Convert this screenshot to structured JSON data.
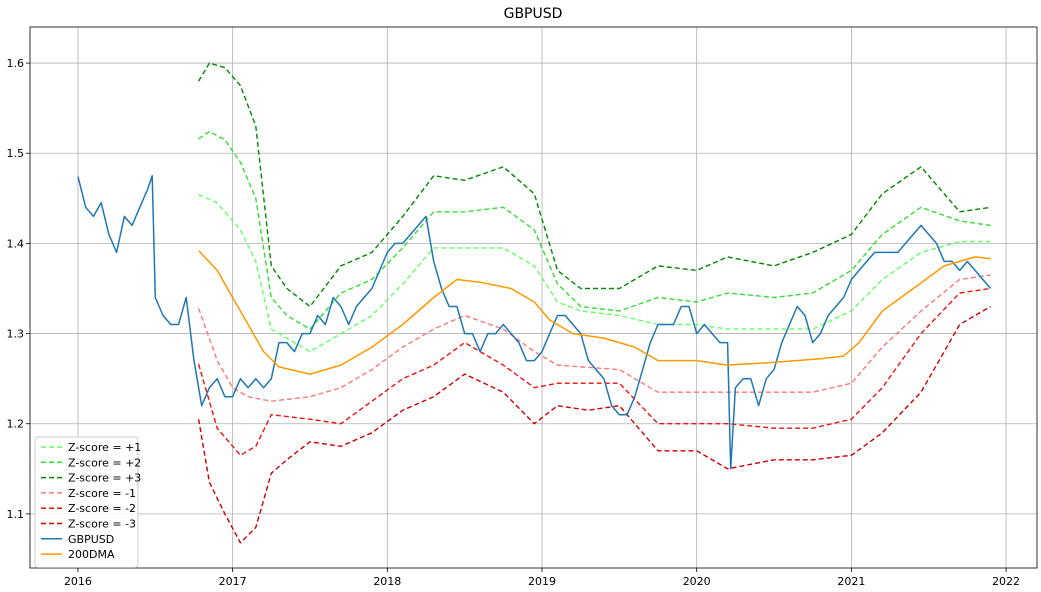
{
  "chart_data": {
    "type": "line",
    "title": "GBPUSD",
    "xlabel": "",
    "ylabel": "",
    "xlim": [
      2015.69,
      2022.2
    ],
    "ylim": [
      1.04,
      1.64
    ],
    "x_ticks": [
      2016,
      2017,
      2018,
      2019,
      2020,
      2021,
      2022
    ],
    "x_tick_labels": [
      "2016",
      "2017",
      "2018",
      "2019",
      "2020",
      "2021",
      "2022"
    ],
    "y_ticks": [
      1.1,
      1.2,
      1.3,
      1.4,
      1.5,
      1.6
    ],
    "y_tick_labels": [
      "1.1",
      "1.2",
      "1.3",
      "1.4",
      "1.5",
      "1.6"
    ],
    "grid": true,
    "legend_position": "lower-left",
    "series": [
      {
        "name": "Z-score = +1",
        "color": "#66ff66",
        "dash": "dashed",
        "x": [
          2016.78,
          2016.9,
          2017.05,
          2017.15,
          2017.25,
          2017.35,
          2017.5,
          2017.7,
          2017.9,
          2018.1,
          2018.3,
          2018.5,
          2018.75,
          2018.95,
          2019.1,
          2019.25,
          2019.5,
          2019.75,
          2020.0,
          2020.2,
          2020.5,
          2020.75,
          2021.0,
          2021.2,
          2021.45,
          2021.7,
          2021.9
        ],
        "y": [
          1.454,
          1.445,
          1.415,
          1.38,
          1.305,
          1.295,
          1.28,
          1.3,
          1.32,
          1.355,
          1.395,
          1.395,
          1.395,
          1.375,
          1.335,
          1.325,
          1.32,
          1.31,
          1.31,
          1.305,
          1.305,
          1.305,
          1.325,
          1.36,
          1.39,
          1.402,
          1.402
        ]
      },
      {
        "name": "Z-score = +2",
        "color": "#33dd33",
        "dash": "dashed",
        "x": [
          2016.78,
          2016.85,
          2016.95,
          2017.05,
          2017.15,
          2017.25,
          2017.35,
          2017.5,
          2017.7,
          2017.9,
          2018.1,
          2018.3,
          2018.5,
          2018.75,
          2018.95,
          2019.1,
          2019.25,
          2019.5,
          2019.75,
          2020.0,
          2020.2,
          2020.5,
          2020.75,
          2021.0,
          2021.2,
          2021.45,
          2021.7,
          2021.9
        ],
        "y": [
          1.516,
          1.524,
          1.515,
          1.49,
          1.45,
          1.34,
          1.32,
          1.305,
          1.345,
          1.36,
          1.395,
          1.435,
          1.435,
          1.44,
          1.415,
          1.355,
          1.33,
          1.325,
          1.34,
          1.335,
          1.345,
          1.34,
          1.345,
          1.37,
          1.41,
          1.44,
          1.425,
          1.42
        ]
      },
      {
        "name": "Z-score = +3",
        "color": "#008800",
        "dash": "dashed",
        "x": [
          2016.78,
          2016.85,
          2016.95,
          2017.05,
          2017.15,
          2017.25,
          2017.35,
          2017.5,
          2017.7,
          2017.9,
          2018.1,
          2018.3,
          2018.5,
          2018.75,
          2018.95,
          2019.1,
          2019.25,
          2019.5,
          2019.75,
          2020.0,
          2020.2,
          2020.5,
          2020.75,
          2021.0,
          2021.2,
          2021.45,
          2021.7,
          2021.9
        ],
        "y": [
          1.58,
          1.6,
          1.595,
          1.575,
          1.53,
          1.375,
          1.35,
          1.33,
          1.375,
          1.39,
          1.43,
          1.475,
          1.47,
          1.485,
          1.455,
          1.37,
          1.35,
          1.35,
          1.375,
          1.37,
          1.385,
          1.375,
          1.39,
          1.41,
          1.455,
          1.485,
          1.435,
          1.44
        ]
      },
      {
        "name": "Z-score = -1",
        "color": "#ff7777",
        "dash": "dashed",
        "x": [
          2016.78,
          2016.9,
          2017.0,
          2017.1,
          2017.25,
          2017.5,
          2017.7,
          2017.9,
          2018.1,
          2018.3,
          2018.5,
          2018.75,
          2018.95,
          2019.1,
          2019.5,
          2019.75,
          2020.0,
          2020.2,
          2020.5,
          2020.75,
          2021.0,
          2021.2,
          2021.45,
          2021.7,
          2021.9
        ],
        "y": [
          1.328,
          1.27,
          1.24,
          1.23,
          1.225,
          1.23,
          1.24,
          1.26,
          1.285,
          1.305,
          1.32,
          1.305,
          1.28,
          1.265,
          1.26,
          1.235,
          1.235,
          1.235,
          1.235,
          1.235,
          1.245,
          1.285,
          1.325,
          1.36,
          1.365
        ]
      },
      {
        "name": "Z-score = -2",
        "color": "#ee1111",
        "dash": "dashed",
        "x": [
          2016.78,
          2016.9,
          2017.05,
          2017.15,
          2017.25,
          2017.5,
          2017.7,
          2017.9,
          2018.1,
          2018.3,
          2018.5,
          2018.75,
          2018.95,
          2019.1,
          2019.5,
          2019.75,
          2020.0,
          2020.2,
          2020.5,
          2020.75,
          2021.0,
          2021.2,
          2021.45,
          2021.7,
          2021.9
        ],
        "y": [
          1.266,
          1.195,
          1.165,
          1.175,
          1.21,
          1.205,
          1.2,
          1.225,
          1.25,
          1.265,
          1.29,
          1.265,
          1.24,
          1.245,
          1.245,
          1.2,
          1.2,
          1.2,
          1.195,
          1.195,
          1.205,
          1.24,
          1.3,
          1.345,
          1.35
        ]
      },
      {
        "name": "Z-score = -3",
        "color": "#cc0000",
        "dash": "dashed",
        "x": [
          2016.78,
          2016.85,
          2016.95,
          2017.05,
          2017.15,
          2017.25,
          2017.35,
          2017.5,
          2017.7,
          2017.9,
          2018.1,
          2018.3,
          2018.5,
          2018.75,
          2018.95,
          2019.1,
          2019.3,
          2019.5,
          2019.75,
          2020.0,
          2020.2,
          2020.5,
          2020.75,
          2021.0,
          2021.2,
          2021.45,
          2021.7,
          2021.9
        ],
        "y": [
          1.205,
          1.135,
          1.1,
          1.068,
          1.085,
          1.145,
          1.16,
          1.18,
          1.175,
          1.19,
          1.215,
          1.23,
          1.255,
          1.235,
          1.2,
          1.22,
          1.215,
          1.22,
          1.17,
          1.17,
          1.15,
          1.16,
          1.16,
          1.165,
          1.19,
          1.235,
          1.31,
          1.33
        ]
      },
      {
        "name": "GBPUSD",
        "color": "#1f77b4",
        "dash": "solid",
        "x": [
          2016.0,
          2016.05,
          2016.1,
          2016.15,
          2016.2,
          2016.25,
          2016.3,
          2016.35,
          2016.4,
          2016.45,
          2016.48,
          2016.5,
          2016.55,
          2016.6,
          2016.65,
          2016.7,
          2016.75,
          2016.8,
          2016.85,
          2016.9,
          2016.95,
          2017.0,
          2017.05,
          2017.1,
          2017.15,
          2017.2,
          2017.25,
          2017.3,
          2017.35,
          2017.4,
          2017.45,
          2017.5,
          2017.55,
          2017.6,
          2017.65,
          2017.7,
          2017.75,
          2017.8,
          2017.85,
          2017.9,
          2017.95,
          2018.0,
          2018.05,
          2018.1,
          2018.15,
          2018.2,
          2018.25,
          2018.3,
          2018.35,
          2018.4,
          2018.45,
          2018.5,
          2018.55,
          2018.6,
          2018.65,
          2018.7,
          2018.75,
          2018.8,
          2018.85,
          2018.9,
          2018.95,
          2019.0,
          2019.05,
          2019.1,
          2019.15,
          2019.2,
          2019.25,
          2019.3,
          2019.35,
          2019.4,
          2019.45,
          2019.5,
          2019.55,
          2019.6,
          2019.65,
          2019.7,
          2019.75,
          2019.8,
          2019.85,
          2019.9,
          2019.95,
          2020.0,
          2020.05,
          2020.1,
          2020.15,
          2020.2,
          2020.22,
          2020.25,
          2020.3,
          2020.35,
          2020.4,
          2020.45,
          2020.5,
          2020.55,
          2020.6,
          2020.65,
          2020.7,
          2020.75,
          2020.8,
          2020.85,
          2020.9,
          2020.95,
          2021.0,
          2021.05,
          2021.1,
          2021.15,
          2021.2,
          2021.25,
          2021.3,
          2021.35,
          2021.4,
          2021.45,
          2021.5,
          2021.55,
          2021.6,
          2021.65,
          2021.7,
          2021.75,
          2021.8,
          2021.85,
          2021.9
        ],
        "y": [
          1.474,
          1.44,
          1.43,
          1.445,
          1.41,
          1.39,
          1.43,
          1.42,
          1.44,
          1.46,
          1.475,
          1.34,
          1.32,
          1.31,
          1.31,
          1.34,
          1.27,
          1.22,
          1.24,
          1.25,
          1.23,
          1.23,
          1.25,
          1.24,
          1.25,
          1.24,
          1.25,
          1.29,
          1.29,
          1.28,
          1.3,
          1.3,
          1.32,
          1.31,
          1.34,
          1.33,
          1.31,
          1.33,
          1.34,
          1.35,
          1.37,
          1.39,
          1.4,
          1.4,
          1.41,
          1.42,
          1.43,
          1.38,
          1.35,
          1.33,
          1.33,
          1.3,
          1.3,
          1.28,
          1.3,
          1.3,
          1.31,
          1.3,
          1.29,
          1.27,
          1.27,
          1.28,
          1.3,
          1.32,
          1.32,
          1.31,
          1.3,
          1.27,
          1.26,
          1.25,
          1.22,
          1.21,
          1.21,
          1.23,
          1.26,
          1.29,
          1.31,
          1.31,
          1.31,
          1.33,
          1.33,
          1.3,
          1.31,
          1.3,
          1.29,
          1.29,
          1.15,
          1.24,
          1.25,
          1.25,
          1.22,
          1.25,
          1.26,
          1.29,
          1.31,
          1.33,
          1.32,
          1.29,
          1.3,
          1.32,
          1.33,
          1.34,
          1.36,
          1.37,
          1.38,
          1.39,
          1.39,
          1.39,
          1.39,
          1.4,
          1.41,
          1.42,
          1.41,
          1.4,
          1.38,
          1.38,
          1.37,
          1.38,
          1.37,
          1.36,
          1.35
        ]
      },
      {
        "name": "200DMA",
        "color": "#ff9900",
        "dash": "solid",
        "x": [
          2016.78,
          2016.9,
          2017.0,
          2017.1,
          2017.2,
          2017.3,
          2017.5,
          2017.7,
          2017.9,
          2018.1,
          2018.3,
          2018.45,
          2018.6,
          2018.8,
          2018.95,
          2019.05,
          2019.2,
          2019.4,
          2019.6,
          2019.75,
          2020.0,
          2020.2,
          2020.5,
          2020.8,
          2020.95,
          2021.05,
          2021.2,
          2021.4,
          2021.6,
          2021.8,
          2021.9
        ],
        "y": [
          1.392,
          1.37,
          1.34,
          1.31,
          1.28,
          1.263,
          1.255,
          1.265,
          1.285,
          1.31,
          1.34,
          1.36,
          1.357,
          1.35,
          1.335,
          1.315,
          1.3,
          1.295,
          1.285,
          1.27,
          1.27,
          1.265,
          1.268,
          1.272,
          1.275,
          1.29,
          1.325,
          1.35,
          1.375,
          1.385,
          1.383
        ]
      }
    ]
  }
}
